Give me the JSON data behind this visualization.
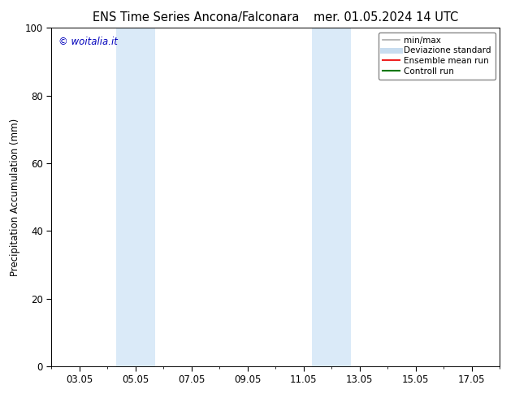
{
  "title_left": "ENS Time Series Ancona/Falconara",
  "title_right": "mer. 01.05.2024 14 UTC",
  "ylabel": "Precipitation Accumulation (mm)",
  "xlabel": "",
  "ylim": [
    0,
    100
  ],
  "yticks": [
    0,
    20,
    40,
    60,
    80,
    100
  ],
  "x_labels": [
    "03.05",
    "05.05",
    "07.05",
    "09.05",
    "11.05",
    "13.05",
    "15.05",
    "17.05"
  ],
  "x_values": [
    3,
    5,
    7,
    9,
    11,
    13,
    15,
    17
  ],
  "x_min": 2.0,
  "x_max": 18.0,
  "shaded_regions": [
    {
      "x_start": 4.3,
      "x_end": 5.7
    },
    {
      "x_start": 11.3,
      "x_end": 12.7
    }
  ],
  "shaded_color": "#daeaf8",
  "watermark_text": "© woitalia.it",
  "watermark_color": "#0000bb",
  "legend_items": [
    {
      "label": "min/max",
      "color": "#aaaaaa",
      "lw": 1.2,
      "ls": "-"
    },
    {
      "label": "Deviazione standard",
      "color": "#c8ddf0",
      "lw": 5,
      "ls": "-"
    },
    {
      "label": "Ensemble mean run",
      "color": "#ee2222",
      "lw": 1.5,
      "ls": "-"
    },
    {
      "label": "Controll run",
      "color": "#007700",
      "lw": 1.5,
      "ls": "-"
    }
  ],
  "bg_color": "#ffffff",
  "title_fontsize": 10.5,
  "tick_fontsize": 8.5,
  "ylabel_fontsize": 8.5,
  "watermark_fontsize": 8.5
}
